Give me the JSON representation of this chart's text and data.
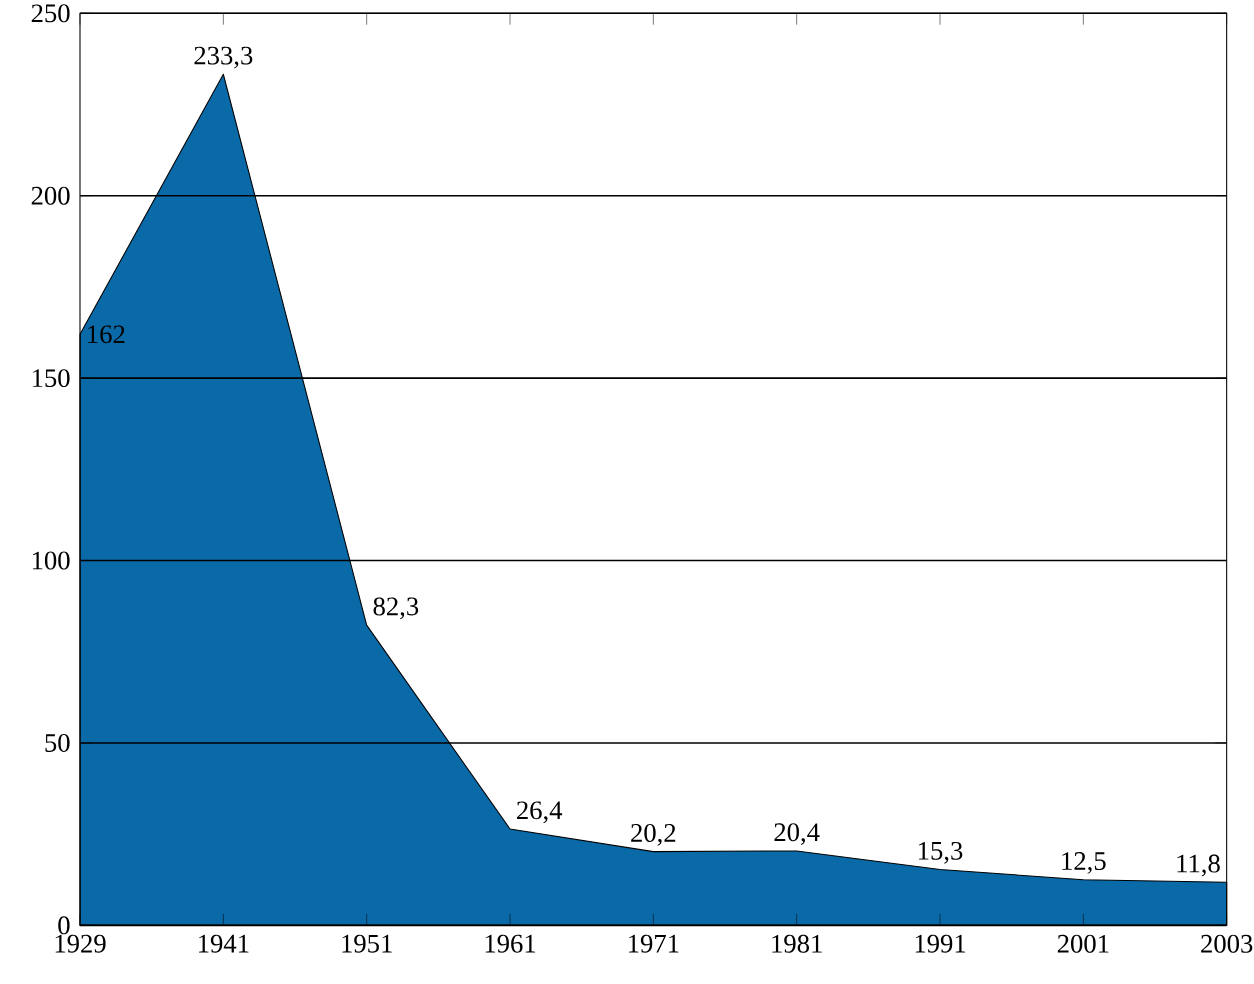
{
  "chart_data": {
    "type": "area",
    "categories": [
      "1929",
      "1941",
      "1951",
      "1961",
      "1971",
      "1981",
      "1991",
      "2001",
      "2003"
    ],
    "values": [
      162,
      233.3,
      82.3,
      26.4,
      20.2,
      20.4,
      15.3,
      12.5,
      11.8
    ],
    "value_labels": [
      "162",
      "233,3",
      "82,3",
      "26,4",
      "20,2",
      "20,4",
      "15,3",
      "12,5",
      "11,8"
    ],
    "color": "#0a6aa8",
    "ylim": [
      0,
      250
    ],
    "yticks": [
      0,
      50,
      100,
      150,
      200,
      250
    ],
    "grid": "y"
  }
}
